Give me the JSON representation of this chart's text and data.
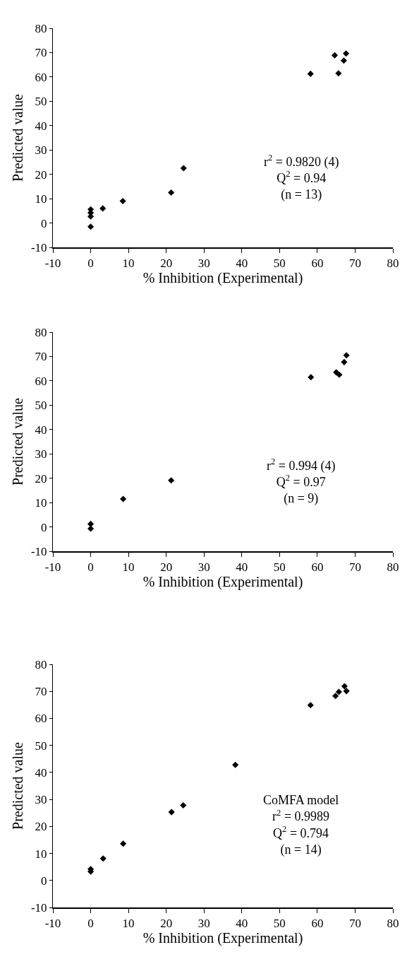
{
  "chart_data": [
    {
      "type": "scatter",
      "xlabel": "% Inhibition (Experimental)",
      "ylabel": "Predicted value",
      "annotations": [
        "r$^{2}$ = 0.9820 (4)",
        "Q$^{2}$ = 0.94",
        "(n = 13)"
      ],
      "x": [
        0,
        0,
        0,
        0,
        3.2,
        8.5,
        21.3,
        24.6,
        58.2,
        64.6,
        67.6,
        67.0,
        65.6
      ],
      "values": [
        5.6,
        4.2,
        2.7,
        -1.5,
        6.0,
        9.0,
        12.5,
        22.5,
        61.3,
        68.9,
        69.6,
        66.7,
        61.5
      ],
      "color": "#000000",
      "marker": "diamond",
      "grid": false,
      "legend": false,
      "xlim": [
        -10,
        80
      ],
      "xticks": [
        -10,
        0,
        10,
        20,
        30,
        40,
        50,
        60,
        70,
        80
      ],
      "ylim": [
        -10,
        80
      ],
      "yticks": [
        -10,
        0,
        10,
        20,
        30,
        40,
        50,
        60,
        70,
        80
      ]
    },
    {
      "type": "scatter",
      "xlabel": "% Inhibition (Experimental)",
      "ylabel": "Predicted value",
      "annotations": [
        "r$^{2}$ = 0.994 (4)",
        "Q$^{2}$ = 0.97",
        "(n = 9)"
      ],
      "x": [
        0,
        0,
        8.6,
        21.3,
        58.3,
        65.0,
        65.8,
        67.1,
        67.7
      ],
      "values": [
        1.2,
        -0.7,
        11.5,
        19.1,
        61.5,
        63.5,
        62.5,
        67.7,
        70.5
      ],
      "color": "#000000",
      "marker": "diamond",
      "grid": false,
      "legend": false,
      "xlim": [
        -10,
        80
      ],
      "xticks": [
        -10,
        0,
        10,
        20,
        30,
        40,
        50,
        60,
        70,
        80
      ],
      "ylim": [
        -10,
        80
      ],
      "yticks": [
        -10,
        0,
        10,
        20,
        30,
        40,
        50,
        60,
        70,
        80
      ]
    },
    {
      "type": "scatter",
      "xlabel": "% Inhibition (Experimental)",
      "ylabel": "Predicted value",
      "annotations": [
        "CoMFA model",
        "r$^{2}$ = 0.9989",
        "Q$^{2}$ = 0.794",
        "(n = 14)"
      ],
      "x": [
        0,
        0,
        3.3,
        8.6,
        21.4,
        24.5,
        38.3,
        58.2,
        64.8,
        65.7,
        67.2,
        67.7
      ],
      "values": [
        4.2,
        3.3,
        8.1,
        13.6,
        25.3,
        27.8,
        42.8,
        64.9,
        68.3,
        69.8,
        71.9,
        70.1
      ],
      "color": "#000000",
      "marker": "diamond",
      "grid": false,
      "legend": false,
      "xlim": [
        -10,
        80
      ],
      "xticks": [
        -10,
        0,
        10,
        20,
        30,
        40,
        50,
        60,
        70,
        80
      ],
      "ylim": [
        -10,
        80
      ],
      "yticks": [
        -10,
        0,
        10,
        20,
        30,
        40,
        50,
        60,
        70,
        80
      ]
    }
  ]
}
